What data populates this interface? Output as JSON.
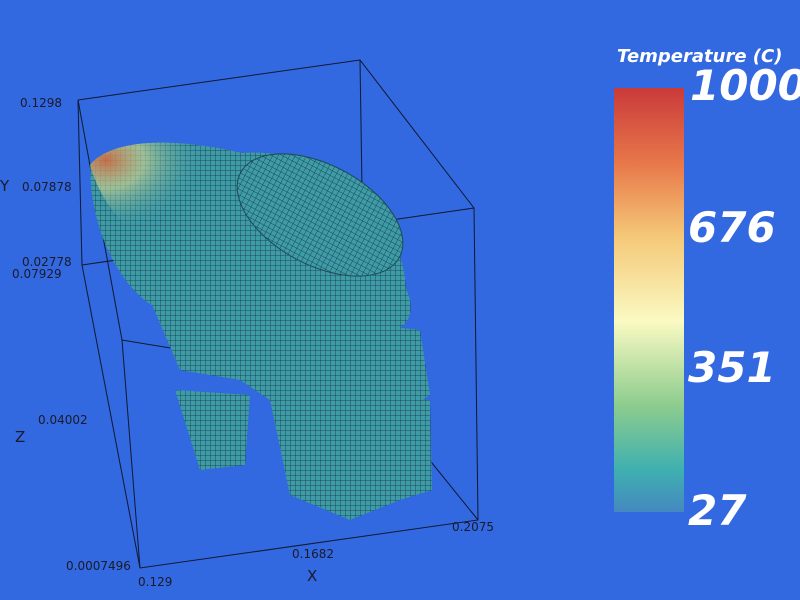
{
  "colorbar": {
    "title": "Temperature (C)",
    "labels": [
      "1000",
      "676",
      "351",
      "27"
    ]
  },
  "axes": {
    "y_label": "Y",
    "z_label": "Z",
    "x_label": "X",
    "y_ticks": [
      "0.1298",
      "0.07878",
      "0.02778"
    ],
    "z_ticks": [
      "0.07929",
      "0.04002",
      "0.0007496"
    ],
    "x_ticks": [
      "0.129",
      "0.1682",
      "0.2075"
    ]
  }
}
